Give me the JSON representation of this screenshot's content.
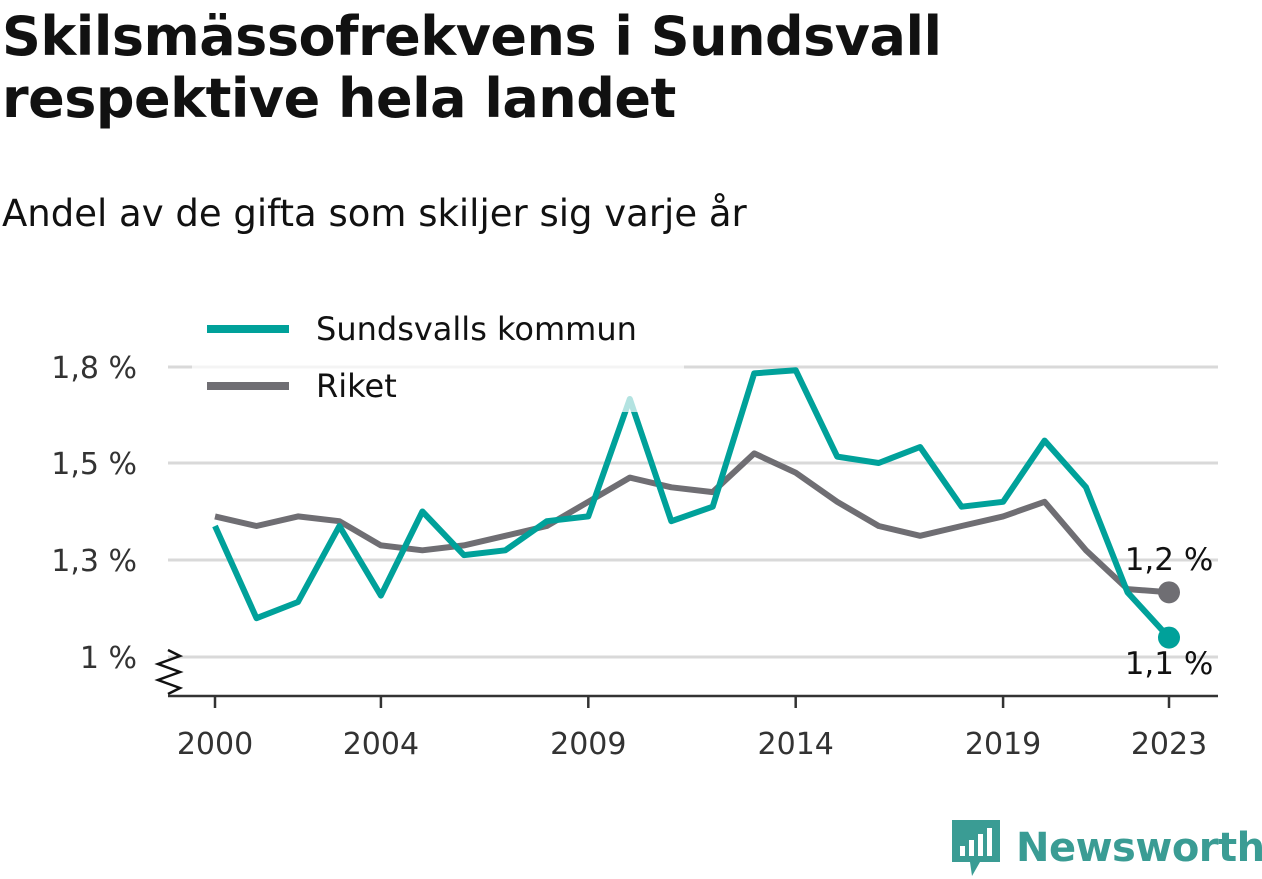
{
  "title": "Skilsmässofrekvens i Sundsvall respektive hela landet",
  "subtitle": "Andel av de gifta som skiljer sig varje år",
  "brand": {
    "name": "Newsworthy",
    "icon": "newsworthy-logo-icon",
    "color": "#3a9c94"
  },
  "chart_data": {
    "type": "line",
    "x": [
      2000,
      2001,
      2002,
      2003,
      2004,
      2005,
      2006,
      2007,
      2008,
      2009,
      2010,
      2011,
      2012,
      2013,
      2014,
      2015,
      2016,
      2017,
      2018,
      2019,
      2020,
      2021,
      2022,
      2023
    ],
    "series": [
      {
        "name": "Sundsvalls kommun",
        "color": "#00a19a",
        "values": [
          1.37,
          1.12,
          1.17,
          1.37,
          1.19,
          1.4,
          1.31,
          1.32,
          1.38,
          1.39,
          1.7,
          1.38,
          1.41,
          1.78,
          1.79,
          1.52,
          1.5,
          1.55,
          1.41,
          1.42,
          1.57,
          1.45,
          1.2,
          1.06
        ],
        "end_label": "1,1 %"
      },
      {
        "name": "Riket",
        "color": "#6f6e73",
        "values": [
          1.39,
          1.37,
          1.39,
          1.38,
          1.33,
          1.32,
          1.33,
          1.35,
          1.37,
          1.42,
          1.47,
          1.45,
          1.44,
          1.53,
          1.48,
          1.42,
          1.37,
          1.35,
          1.37,
          1.39,
          1.42,
          1.32,
          1.21,
          1.2
        ],
        "end_label": "1,2 %"
      }
    ],
    "y_ticks": [
      {
        "value": 1.0,
        "label": "1 %"
      },
      {
        "value": 1.3,
        "label": "1,3 %"
      },
      {
        "value": 1.5,
        "label": "1,5 %"
      },
      {
        "value": 1.8,
        "label": "1,8 %"
      }
    ],
    "x_ticks": [
      {
        "value": 2000,
        "label": "2000"
      },
      {
        "value": 2004,
        "label": "2004"
      },
      {
        "value": 2009,
        "label": "2009"
      },
      {
        "value": 2014,
        "label": "2014"
      },
      {
        "value": 2019,
        "label": "2019"
      },
      {
        "value": 2023,
        "label": "2023"
      }
    ],
    "ylim": [
      1.0,
      1.8
    ],
    "y_axis_break": true,
    "grid": true,
    "legend_position": "top-left"
  }
}
